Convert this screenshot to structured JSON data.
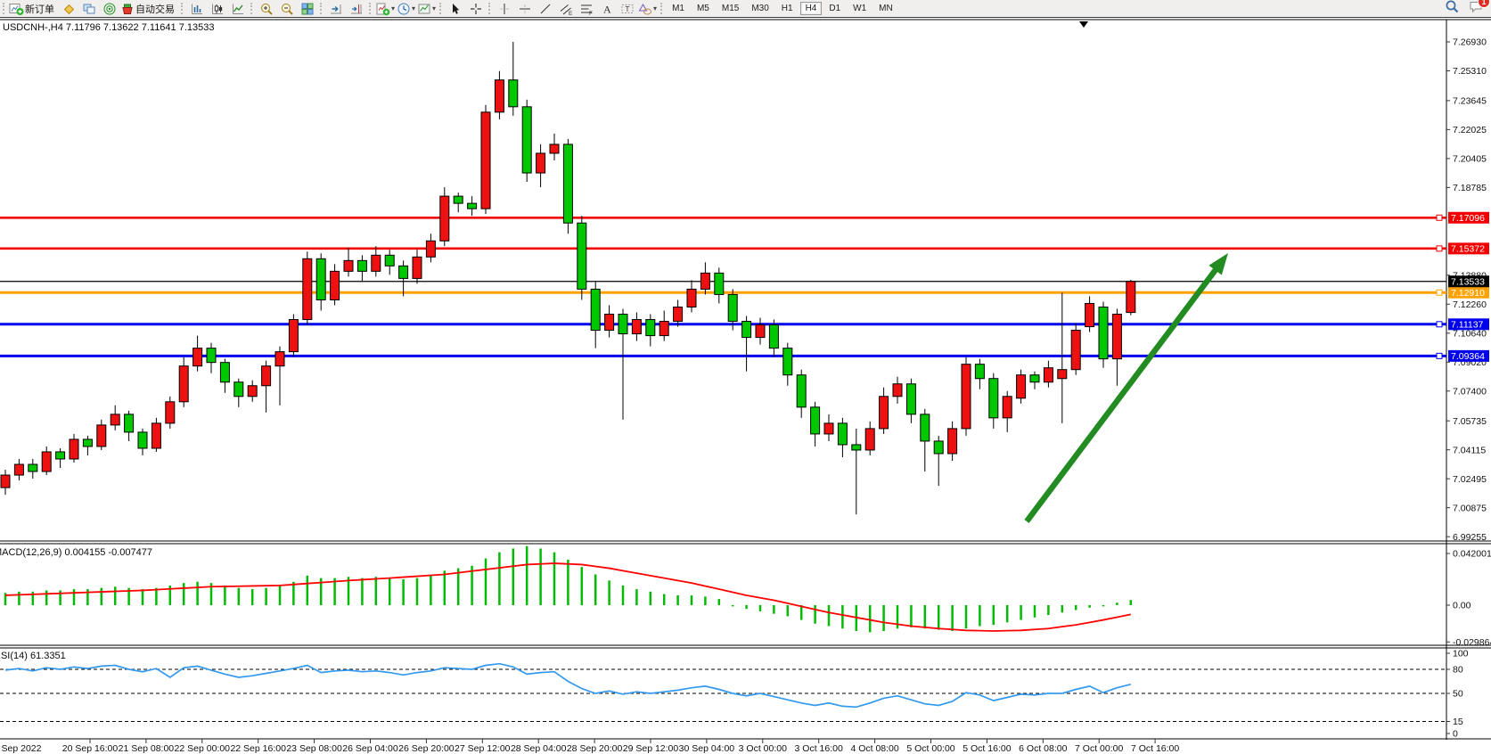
{
  "toolbar": {
    "groups": [
      {
        "items": [
          {
            "name": "new-order-button",
            "icon": "new-order-icon",
            "label": "新订单"
          },
          {
            "name": "market-watch-button",
            "icon": "market-watch-icon"
          },
          {
            "name": "data-window-button",
            "icon": "windows-icon"
          },
          {
            "name": "navigator-button",
            "icon": "navigator-icon"
          },
          {
            "name": "auto-trading-button",
            "icon": "autotrade-icon",
            "label": "自动交易"
          }
        ]
      },
      {
        "items": [
          {
            "name": "bar-chart-button",
            "icon": "bar-chart-icon"
          },
          {
            "name": "candlestick-chart-button",
            "icon": "candlestick-icon"
          },
          {
            "name": "line-chart-button",
            "icon": "line-chart-icon"
          }
        ]
      },
      {
        "items": [
          {
            "name": "zoom-in-button",
            "icon": "zoom-in-icon"
          },
          {
            "name": "zoom-out-button",
            "icon": "zoom-out-icon"
          },
          {
            "name": "tile-windows-button",
            "icon": "tile-windows-icon"
          }
        ]
      },
      {
        "items": [
          {
            "name": "auto-scroll-button",
            "icon": "auto-scroll-icon"
          },
          {
            "name": "chart-shift-button",
            "icon": "chart-shift-icon"
          }
        ]
      },
      {
        "items": [
          {
            "name": "indicators-button",
            "icon": "indicators-icon",
            "dropdown": true
          },
          {
            "name": "periods-button",
            "icon": "periods-icon",
            "dropdown": true
          },
          {
            "name": "templates-button",
            "icon": "templates-icon",
            "dropdown": true
          }
        ]
      },
      {
        "items": [
          {
            "name": "cursor-button",
            "icon": "cursor-icon"
          },
          {
            "name": "crosshair-button",
            "icon": "crosshair-icon"
          }
        ]
      },
      {
        "items": [
          {
            "name": "vertical-line-button",
            "icon": "vline-icon"
          },
          {
            "name": "horizontal-line-button",
            "icon": "hline-icon"
          },
          {
            "name": "trendline-button",
            "icon": "trendline-icon"
          },
          {
            "name": "equidistant-channel-button",
            "icon": "channel-icon"
          },
          {
            "name": "fibonacci-button",
            "icon": "fibo-icon"
          },
          {
            "name": "text-button",
            "icon": "text-icon"
          },
          {
            "name": "text-label-button",
            "icon": "label-icon"
          },
          {
            "name": "arrows-button",
            "icon": "shapes-icon",
            "dropdown": true
          }
        ]
      }
    ],
    "timeframes": [
      "M1",
      "M5",
      "M15",
      "M30",
      "H1",
      "H4",
      "D1",
      "W1",
      "MN"
    ],
    "active_timeframe": "H4",
    "right_icons": [
      {
        "name": "search-button",
        "icon": "search-icon"
      },
      {
        "name": "chat-button",
        "icon": "chat-icon",
        "badge": "1"
      }
    ]
  },
  "chart": {
    "symbol_line": "USDCNH-,H4  7.11796 7.13622 7.11641 7.13533",
    "symbol": "USDCNH-",
    "period": "H4",
    "open": "7.11796",
    "high": "7.13622",
    "low": "7.11641",
    "close": "7.13533"
  },
  "macd": {
    "label_full": "MACD(12,26,9) 0.004155 -0.007477",
    "name": "MACD(12,26,9)",
    "value": "0.004155",
    "signal_value": "-0.007477"
  },
  "rsi": {
    "label_full": "RSI(14) 61.3351",
    "name": "RSI(14)",
    "value": "61.3351"
  },
  "chart_data": {
    "type": "candlestick-with-indicators",
    "price_axis_ticks": [
      {
        "label": "7.26930",
        "p": 7.2693
      },
      {
        "label": "7.25310",
        "p": 7.2531
      },
      {
        "label": "7.23645",
        "p": 7.23645
      },
      {
        "label": "7.22025",
        "p": 7.22025
      },
      {
        "label": "7.20405",
        "p": 7.20405
      },
      {
        "label": "7.18785",
        "p": 7.18785
      },
      {
        "label": "7.13880",
        "p": 7.1388
      },
      {
        "label": "7.12260",
        "p": 7.1226
      },
      {
        "label": "7.10640",
        "p": 7.1064
      },
      {
        "label": "7.09020",
        "p": 7.0902
      },
      {
        "label": "7.07400",
        "p": 7.074
      },
      {
        "label": "7.05735",
        "p": 7.05735
      },
      {
        "label": "7.04115",
        "p": 7.04115
      },
      {
        "label": "7.02495",
        "p": 7.02495
      },
      {
        "label": "7.00875",
        "p": 7.00875
      },
      {
        "label": "6.99255",
        "p": 6.99255
      }
    ],
    "level_lines": [
      {
        "label": "7.17096",
        "p": 7.17096,
        "color": "#f20000",
        "width": 2.6
      },
      {
        "label": "7.15372",
        "p": 7.15372,
        "color": "#f20000",
        "width": 2.6
      },
      {
        "label": "7.12910",
        "p": 7.1291,
        "color": "#ffa200",
        "width": 3
      },
      {
        "label": "7.11137",
        "p": 7.11137,
        "color": "#0000ee",
        "width": 3
      },
      {
        "label": "7.09364",
        "p": 7.09364,
        "color": "#0000ee",
        "width": 3
      }
    ],
    "bid_line": {
      "label": "7.13533",
      "p": 7.13533,
      "color": "#000000"
    },
    "time_labels": [
      "Sep 2022",
      "20 Sep 16:00",
      "21 Sep 08:00",
      "22 Sep 00:00",
      "22 Sep 16:00",
      "23 Sep 08:00",
      "26 Sep 04:00",
      "26 Sep 20:00",
      "27 Sep 12:00",
      "28 Sep 04:00",
      "28 Sep 20:00",
      "29 Sep 12:00",
      "30 Sep 04:00",
      "3 Oct 00:00",
      "3 Oct 16:00",
      "4 Oct 08:00",
      "5 Oct 00:00",
      "5 Oct 16:00",
      "6 Oct 08:00",
      "7 Oct 00:00",
      "7 Oct 16:00"
    ],
    "candles_ohlc": [
      [
        7.02,
        7.03,
        7.016,
        7.027
      ],
      [
        7.027,
        7.036,
        7.024,
        7.033
      ],
      [
        7.033,
        7.036,
        7.025,
        7.029
      ],
      [
        7.029,
        7.043,
        7.027,
        7.04
      ],
      [
        7.04,
        7.042,
        7.031,
        7.036
      ],
      [
        7.036,
        7.05,
        7.034,
        7.047
      ],
      [
        7.047,
        7.049,
        7.038,
        7.043
      ],
      [
        7.043,
        7.058,
        7.041,
        7.055
      ],
      [
        7.055,
        7.066,
        7.052,
        7.061
      ],
      [
        7.061,
        7.063,
        7.046,
        7.051
      ],
      [
        7.051,
        7.053,
        7.038,
        7.042
      ],
      [
        7.042,
        7.059,
        7.04,
        7.056
      ],
      [
        7.056,
        7.071,
        7.053,
        7.068
      ],
      [
        7.068,
        7.093,
        7.065,
        7.088
      ],
      [
        7.088,
        7.105,
        7.085,
        7.098
      ],
      [
        7.098,
        7.101,
        7.084,
        7.09
      ],
      [
        7.09,
        7.092,
        7.073,
        7.079
      ],
      [
        7.079,
        7.081,
        7.065,
        7.071
      ],
      [
        7.071,
        7.08,
        7.068,
        7.077
      ],
      [
        7.077,
        7.091,
        7.062,
        7.088
      ],
      [
        7.088,
        7.099,
        7.066,
        7.096
      ],
      [
        7.096,
        7.117,
        7.093,
        7.114
      ],
      [
        7.114,
        7.152,
        7.111,
        7.148
      ],
      [
        7.148,
        7.151,
        7.119,
        7.125
      ],
      [
        7.125,
        7.145,
        7.122,
        7.141
      ],
      [
        7.141,
        7.154,
        7.138,
        7.147
      ],
      [
        7.147,
        7.15,
        7.135,
        7.141
      ],
      [
        7.141,
        7.155,
        7.138,
        7.15
      ],
      [
        7.15,
        7.153,
        7.139,
        7.144
      ],
      [
        7.144,
        7.147,
        7.127,
        7.137
      ],
      [
        7.137,
        7.153,
        7.134,
        7.149
      ],
      [
        7.149,
        7.162,
        7.146,
        7.158
      ],
      [
        7.158,
        7.188,
        7.155,
        7.183
      ],
      [
        7.183,
        7.185,
        7.174,
        7.179
      ],
      [
        7.179,
        7.183,
        7.172,
        7.176
      ],
      [
        7.176,
        7.234,
        7.173,
        7.23
      ],
      [
        7.23,
        7.253,
        7.226,
        7.248
      ],
      [
        7.248,
        7.2693,
        7.228,
        7.233
      ],
      [
        7.233,
        7.237,
        7.191,
        7.196
      ],
      [
        7.196,
        7.212,
        7.188,
        7.207
      ],
      [
        7.207,
        7.218,
        7.203,
        7.212
      ],
      [
        7.212,
        7.215,
        7.162,
        7.168
      ],
      [
        7.168,
        7.172,
        7.125,
        7.131
      ],
      [
        7.131,
        7.135,
        7.098,
        7.108
      ],
      [
        7.108,
        7.122,
        7.104,
        7.117
      ],
      [
        7.117,
        7.12,
        7.058,
        7.106
      ],
      [
        7.106,
        7.118,
        7.102,
        7.114
      ],
      [
        7.114,
        7.117,
        7.099,
        7.105
      ],
      [
        7.105,
        7.119,
        7.102,
        7.113
      ],
      [
        7.113,
        7.125,
        7.11,
        7.121
      ],
      [
        7.121,
        7.136,
        7.118,
        7.131
      ],
      [
        7.131,
        7.146,
        7.128,
        7.14
      ],
      [
        7.14,
        7.143,
        7.123,
        7.128
      ],
      [
        7.128,
        7.131,
        7.108,
        7.113
      ],
      [
        7.113,
        7.116,
        7.085,
        7.104
      ],
      [
        7.104,
        7.115,
        7.1,
        7.111
      ],
      [
        7.111,
        7.114,
        7.093,
        7.098
      ],
      [
        7.098,
        7.101,
        7.077,
        7.083
      ],
      [
        7.083,
        7.086,
        7.059,
        7.065
      ],
      [
        7.065,
        7.068,
        7.043,
        7.05
      ],
      [
        7.05,
        7.061,
        7.046,
        7.056
      ],
      [
        7.056,
        7.059,
        7.037,
        7.044
      ],
      [
        7.044,
        7.053,
        7.005,
        7.041
      ],
      [
        7.041,
        7.057,
        7.038,
        7.053
      ],
      [
        7.053,
        7.076,
        7.05,
        7.071
      ],
      [
        7.071,
        7.082,
        7.067,
        7.078
      ],
      [
        7.078,
        7.081,
        7.056,
        7.061
      ],
      [
        7.061,
        7.064,
        7.029,
        7.046
      ],
      [
        7.046,
        7.049,
        7.021,
        7.039
      ],
      [
        7.039,
        7.057,
        7.035,
        7.053
      ],
      [
        7.053,
        7.093,
        7.049,
        7.089
      ],
      [
        7.089,
        7.092,
        7.075,
        7.081
      ],
      [
        7.081,
        7.084,
        7.053,
        7.059
      ],
      [
        7.059,
        7.074,
        7.051,
        7.071
      ],
      [
        7.07,
        7.086,
        7.067,
        7.083
      ],
      [
        7.083,
        7.085,
        7.075,
        7.079
      ],
      [
        7.079,
        7.091,
        7.076,
        7.087
      ],
      [
        7.081,
        7.129,
        7.056,
        7.086
      ],
      [
        7.086,
        7.112,
        7.083,
        7.108
      ],
      [
        7.11,
        7.127,
        7.107,
        7.123
      ],
      [
        7.121,
        7.124,
        7.087,
        7.092
      ],
      [
        7.092,
        7.12,
        7.077,
        7.117
      ],
      [
        7.11796,
        7.13622,
        7.11641,
        7.13533
      ]
    ],
    "up_color_convention": "red-up-green-down",
    "macd_scale_ticks": [
      {
        "label": "0.042001",
        "v": 0.042001
      },
      {
        "label": "0.00",
        "v": 0
      },
      {
        "label": "-0.029864",
        "v": -0.029864
      }
    ],
    "macd_histogram": [
      0.01,
      0.011,
      0.011,
      0.012,
      0.012,
      0.013,
      0.013,
      0.014,
      0.015,
      0.014,
      0.013,
      0.014,
      0.016,
      0.018,
      0.019,
      0.018,
      0.016,
      0.014,
      0.013,
      0.014,
      0.016,
      0.019,
      0.024,
      0.022,
      0.022,
      0.023,
      0.022,
      0.023,
      0.022,
      0.021,
      0.022,
      0.024,
      0.028,
      0.03,
      0.032,
      0.038,
      0.043,
      0.046,
      0.048,
      0.046,
      0.043,
      0.037,
      0.031,
      0.025,
      0.02,
      0.016,
      0.013,
      0.011,
      0.009,
      0.008,
      0.008,
      0.007,
      0.005,
      -0.001,
      -0.003,
      -0.005,
      -0.007,
      -0.009,
      -0.012,
      -0.015,
      -0.017,
      -0.019,
      -0.021,
      -0.022,
      -0.021,
      -0.019,
      -0.018,
      -0.019,
      -0.02,
      -0.021,
      -0.019,
      -0.017,
      -0.016,
      -0.014,
      -0.012,
      -0.01,
      -0.008,
      -0.006,
      -0.004,
      -0.002,
      -0.001,
      0.002,
      0.004155
    ],
    "macd_signal_waypoints": [
      [
        0,
        0.008
      ],
      [
        5,
        0.01
      ],
      [
        10,
        0.012
      ],
      [
        15,
        0.015
      ],
      [
        20,
        0.016
      ],
      [
        25,
        0.02
      ],
      [
        28,
        0.022
      ],
      [
        32,
        0.025
      ],
      [
        35,
        0.029
      ],
      [
        38,
        0.033
      ],
      [
        40,
        0.034
      ],
      [
        42,
        0.033
      ],
      [
        44,
        0.03
      ],
      [
        46,
        0.026
      ],
      [
        48,
        0.022
      ],
      [
        50,
        0.018
      ],
      [
        52,
        0.013
      ],
      [
        54,
        0.008
      ],
      [
        56,
        0.004
      ],
      [
        58,
        -0.001
      ],
      [
        60,
        -0.006
      ],
      [
        62,
        -0.01
      ],
      [
        64,
        -0.014
      ],
      [
        66,
        -0.017
      ],
      [
        68,
        -0.019
      ],
      [
        70,
        -0.0205
      ],
      [
        72,
        -0.021
      ],
      [
        74,
        -0.0205
      ],
      [
        76,
        -0.019
      ],
      [
        78,
        -0.016
      ],
      [
        80,
        -0.012
      ],
      [
        82,
        -0.0075
      ]
    ],
    "rsi_scale_ticks": [
      {
        "label": "100",
        "v": 100
      },
      {
        "label": "80",
        "v": 80,
        "dashed": true
      },
      {
        "label": "50",
        "v": 50,
        "dashed": true
      },
      {
        "label": "15",
        "v": 15,
        "dashed": true
      },
      {
        "label": "0",
        "v": 0
      }
    ],
    "rsi_series": [
      79,
      81,
      78,
      82,
      80,
      83,
      81,
      84,
      85,
      80,
      77,
      81,
      70,
      82,
      84,
      79,
      74,
      70,
      72,
      75,
      78,
      81,
      85,
      76,
      78,
      79,
      77,
      78,
      76,
      73,
      76,
      78,
      82,
      81,
      80,
      85,
      87,
      83,
      74,
      76,
      77,
      65,
      56,
      50,
      53,
      49,
      52,
      50,
      52,
      54,
      57,
      59,
      55,
      50,
      47,
      50,
      46,
      42,
      38,
      35,
      38,
      34,
      33,
      38,
      44,
      47,
      42,
      37,
      35,
      40,
      51,
      48,
      41,
      45,
      49,
      48,
      50,
      50,
      55,
      59,
      51,
      57,
      61.3
    ],
    "trend_arrow": {
      "from": [
        1152,
        585
      ],
      "tip": [
        1378,
        284
      ],
      "color": "#228b22",
      "width": 6.5
    },
    "colors": {
      "bull": "#ee1111",
      "bear": "#00c800",
      "wick": "#000000",
      "macd_hist": "#00bb00",
      "macd_signal": "#ff0000",
      "rsi_line": "#3399ee",
      "bid_label_bg": "#000000"
    }
  }
}
